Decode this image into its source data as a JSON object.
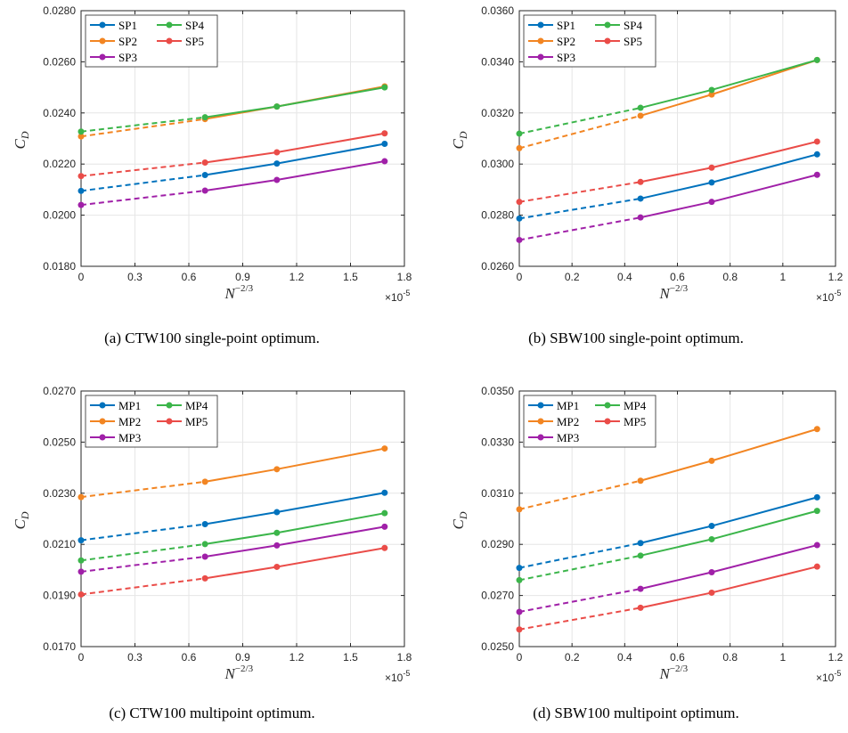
{
  "colors": {
    "c1": "#0072BD",
    "c2": "#F28522",
    "c3": "#A020A8",
    "c4": "#3BB54A",
    "c5": "#EA4C48"
  },
  "captions": [
    "(a) CTW100 single-point optimum.",
    "(b) SBW100 single-point optimum.",
    "(c) CTW100 multipoint optimum.",
    "(d) SBW100 multipoint optimum."
  ],
  "chart_data": [
    {
      "type": "line",
      "ylabel": "C_D",
      "xlabel": "N^{-2/3}",
      "x_exponent": "×10-5",
      "xlim": [
        0,
        1.8
      ],
      "ylim": [
        0.018,
        0.028
      ],
      "xticks": [
        "0",
        "0.3",
        "0.6",
        "0.9",
        "1.2",
        "1.5",
        "1.8"
      ],
      "yticks": [
        "0.0180",
        "0.0200",
        "0.0220",
        "0.0240",
        "0.0260",
        "0.0280"
      ],
      "grid": true,
      "legend_position": "top-left",
      "x_extrapolated": 0,
      "x": [
        0.69,
        1.09,
        1.69
      ],
      "series": [
        {
          "name": "SP1",
          "color": "c1",
          "extrapolated": 0.02095,
          "values": [
            0.02157,
            0.02202,
            0.02279
          ]
        },
        {
          "name": "SP2",
          "color": "c2",
          "extrapolated": 0.02308,
          "values": [
            0.02376,
            0.02425,
            0.02504
          ]
        },
        {
          "name": "SP3",
          "color": "c3",
          "extrapolated": 0.0204,
          "values": [
            0.02096,
            0.02138,
            0.02211
          ]
        },
        {
          "name": "SP4",
          "color": "c4",
          "extrapolated": 0.02327,
          "values": [
            0.02383,
            0.02425,
            0.025
          ]
        },
        {
          "name": "SP5",
          "color": "c5",
          "extrapolated": 0.02153,
          "values": [
            0.02206,
            0.02246,
            0.0232
          ]
        }
      ]
    },
    {
      "type": "line",
      "ylabel": "C_D",
      "xlabel": "N^{-2/3}",
      "x_exponent": "×10-5",
      "xlim": [
        0,
        1.2
      ],
      "ylim": [
        0.026,
        0.036
      ],
      "xticks": [
        "0",
        "0.2",
        "0.4",
        "0.6",
        "0.8",
        "1",
        "1.2"
      ],
      "yticks": [
        "0.0260",
        "0.0280",
        "0.0300",
        "0.0320",
        "0.0340",
        "0.0360"
      ],
      "grid": true,
      "legend_position": "top-left",
      "x_extrapolated": 0,
      "x": [
        0.46,
        0.73,
        1.13
      ],
      "series": [
        {
          "name": "SP1",
          "color": "c1",
          "extrapolated": 0.02787,
          "values": [
            0.02865,
            0.02928,
            0.03038
          ]
        },
        {
          "name": "SP2",
          "color": "c2",
          "extrapolated": 0.03062,
          "values": [
            0.03189,
            0.03272,
            0.03407
          ]
        },
        {
          "name": "SP3",
          "color": "c3",
          "extrapolated": 0.02703,
          "values": [
            0.02791,
            0.02852,
            0.02958
          ]
        },
        {
          "name": "SP4",
          "color": "c4",
          "extrapolated": 0.03119,
          "values": [
            0.0322,
            0.0329,
            0.03407
          ]
        },
        {
          "name": "SP5",
          "color": "c5",
          "extrapolated": 0.02852,
          "values": [
            0.0293,
            0.02986,
            0.03088
          ]
        }
      ]
    },
    {
      "type": "line",
      "ylabel": "C_D",
      "xlabel": "N^{-2/3}",
      "x_exponent": "×10-5",
      "xlim": [
        0,
        1.8
      ],
      "ylim": [
        0.017,
        0.027
      ],
      "xticks": [
        "0",
        "0.3",
        "0.6",
        "0.9",
        "1.2",
        "1.5",
        "1.8"
      ],
      "yticks": [
        "0.0170",
        "0.0190",
        "0.0210",
        "0.0230",
        "0.0250",
        "0.0270"
      ],
      "grid": true,
      "legend_position": "top-left",
      "x_extrapolated": 0,
      "x": [
        0.69,
        1.09,
        1.69
      ],
      "series": [
        {
          "name": "MP1",
          "color": "c1",
          "extrapolated": 0.02116,
          "values": [
            0.02179,
            0.02226,
            0.02302
          ]
        },
        {
          "name": "MP2",
          "color": "c2",
          "extrapolated": 0.02285,
          "values": [
            0.02345,
            0.02394,
            0.02475
          ]
        },
        {
          "name": "MP3",
          "color": "c3",
          "extrapolated": 0.01993,
          "values": [
            0.02052,
            0.02096,
            0.02169
          ]
        },
        {
          "name": "MP4",
          "color": "c4",
          "extrapolated": 0.02037,
          "values": [
            0.02101,
            0.02145,
            0.02222
          ]
        },
        {
          "name": "MP5",
          "color": "c5",
          "extrapolated": 0.01904,
          "values": [
            0.01967,
            0.02012,
            0.02086
          ]
        }
      ]
    },
    {
      "type": "line",
      "ylabel": "C_D",
      "xlabel": "N^{-2/3}",
      "x_exponent": "×10-5",
      "xlim": [
        0,
        1.2
      ],
      "ylim": [
        0.025,
        0.035
      ],
      "xticks": [
        "0",
        "0.2",
        "0.4",
        "0.6",
        "0.8",
        "1",
        "1.2"
      ],
      "yticks": [
        "0.0250",
        "0.0270",
        "0.0290",
        "0.0310",
        "0.0330",
        "0.0350"
      ],
      "grid": true,
      "legend_position": "top-left",
      "x_extrapolated": 0,
      "x": [
        0.46,
        0.73,
        1.13
      ],
      "series": [
        {
          "name": "MP1",
          "color": "c1",
          "extrapolated": 0.02808,
          "values": [
            0.02905,
            0.02972,
            0.03084
          ]
        },
        {
          "name": "MP2",
          "color": "c2",
          "extrapolated": 0.03037,
          "values": [
            0.03149,
            0.03227,
            0.03351
          ]
        },
        {
          "name": "MP3",
          "color": "c3",
          "extrapolated": 0.02636,
          "values": [
            0.02726,
            0.02791,
            0.02897
          ]
        },
        {
          "name": "MP4",
          "color": "c4",
          "extrapolated": 0.0276,
          "values": [
            0.02856,
            0.0292,
            0.03031
          ]
        },
        {
          "name": "MP5",
          "color": "c5",
          "extrapolated": 0.02567,
          "values": [
            0.02652,
            0.02711,
            0.02813
          ]
        }
      ]
    }
  ]
}
